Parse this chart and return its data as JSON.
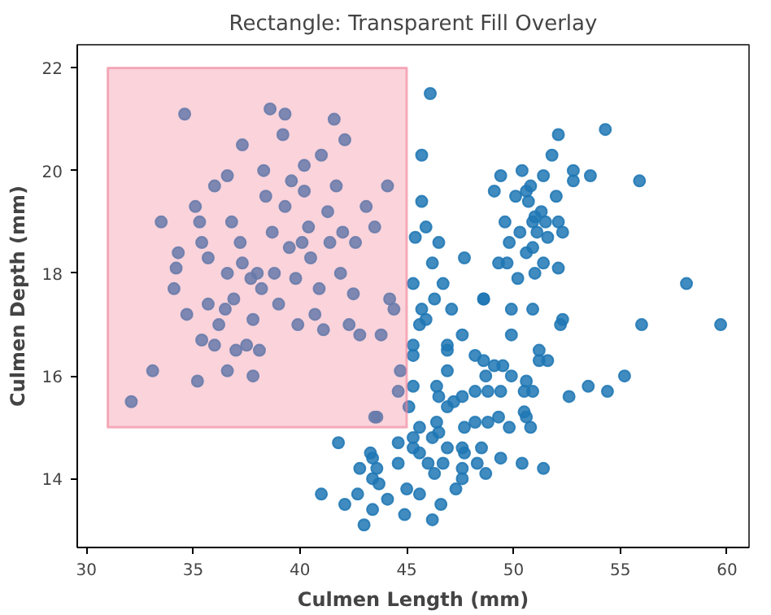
{
  "chart_data": {
    "type": "scatter",
    "title": "Rectangle: Transparent Fill Overlay",
    "xlabel": "Culmen Length (mm)",
    "ylabel": "Culmen Depth (mm)",
    "xlim": [
      29.57,
      61.03
    ],
    "ylim": [
      12.66,
      22.45
    ],
    "xticks": [
      30,
      35,
      40,
      45,
      50,
      55,
      60
    ],
    "yticks": [
      14,
      16,
      18,
      20,
      22
    ],
    "series": [
      {
        "color": "#1f77b4",
        "marker": "circle",
        "x": [
          32.1,
          33.1,
          33.5,
          34.3,
          34.2,
          34.6,
          34.1,
          34.7,
          35.1,
          35.3,
          35.4,
          35.4,
          35.7,
          35.7,
          36.0,
          36.2,
          36.5,
          36.6,
          36.6,
          36.8,
          36.9,
          37.2,
          37.3,
          37.5,
          37.8,
          37.8,
          38.0,
          38.2,
          38.3,
          38.4,
          38.6,
          38.7,
          38.8,
          39.0,
          39.2,
          39.3,
          39.5,
          39.6,
          39.8,
          39.9,
          40.1,
          40.2,
          40.4,
          40.5,
          40.7,
          40.9,
          41.0,
          41.1,
          41.3,
          41.4,
          41.6,
          41.7,
          41.9,
          42.0,
          42.1,
          42.3,
          42.5,
          42.6,
          42.8,
          43.1,
          43.5,
          44.1,
          44.2,
          44.4,
          44.7,
          43.5,
          43.8,
          37.7,
          37.3,
          35.2,
          36.6,
          38.1,
          37.0,
          36.0,
          39.3,
          40.2,
          46.1,
          45.7,
          45.7,
          45.9,
          45.4,
          46.5,
          46.2,
          47.7,
          45.3,
          46.7,
          48.6,
          49.4,
          49.1,
          50.4,
          50.1,
          49.6,
          49.8,
          50.3,
          49.3,
          49.7,
          50.2,
          52.1,
          54.3,
          51.8,
          52.8,
          53.6,
          52.8,
          55.9,
          51.4,
          50.6,
          50.8,
          50.7,
          52.0,
          51.3,
          51.0,
          50.9,
          51.5,
          52.1,
          51.1,
          52.3,
          51.6,
          50.9,
          50.6,
          51.4,
          52.1,
          51.0,
          58.1,
          50.9,
          52.3,
          52.2,
          56.0,
          59.7,
          51.2,
          51.2,
          51.6,
          50.6,
          50.5,
          50.9,
          52.6,
          53.5,
          54.4,
          55.2,
          50.5,
          50.6,
          50.8,
          50.4,
          51.4,
          46.3,
          48.6,
          45.7,
          47.1,
          49.9,
          45.9,
          45.6,
          47.6,
          49.9,
          45.3,
          46.9,
          46.9,
          45.3,
          48.2,
          48.6,
          49.1,
          49.5,
          46.9,
          48.7,
          49.9,
          45.3,
          46.4,
          48.2,
          48.8,
          49.4,
          44.6,
          46.5,
          47.6,
          45.1,
          46.9,
          47.2,
          43.6,
          45.6,
          46.4,
          47.7,
          48.2,
          48.8,
          49.3,
          49.8,
          41.8,
          45.3,
          46.2,
          46.5,
          44.6,
          45.3,
          45.6,
          46.9,
          47.6,
          47.7,
          48.5,
          49.4,
          43.3,
          43.4,
          42.8,
          43.6,
          44.6,
          46.0,
          46.7,
          46.3,
          47.6,
          48.3,
          48.7,
          43.4,
          43.7,
          47.6,
          42.7,
          41.0,
          45.0,
          45.6,
          47.3,
          42.1,
          43.4,
          44.1,
          44.9,
          46.2,
          46.6,
          43.0
        ],
        "values": [
          15.5,
          16.1,
          19.0,
          18.4,
          18.1,
          21.1,
          17.7,
          17.2,
          19.3,
          19.0,
          16.7,
          18.6,
          18.3,
          17.4,
          19.7,
          17.0,
          17.3,
          18.0,
          19.9,
          19.0,
          17.5,
          18.6,
          20.5,
          16.6,
          16.0,
          17.1,
          18.0,
          17.7,
          20.0,
          19.5,
          21.2,
          18.8,
          18.0,
          17.4,
          20.7,
          19.3,
          18.5,
          19.8,
          17.9,
          17.0,
          18.6,
          19.6,
          18.9,
          18.3,
          17.2,
          17.7,
          20.3,
          16.9,
          19.2,
          18.6,
          21.0,
          19.7,
          18.0,
          18.8,
          20.6,
          17.0,
          17.6,
          18.6,
          16.8,
          19.3,
          18.9,
          19.7,
          17.5,
          17.3,
          16.1,
          15.2,
          16.8,
          17.9,
          18.2,
          15.9,
          16.1,
          16.5,
          16.5,
          16.6,
          21.1,
          20.1,
          21.5,
          20.3,
          19.4,
          18.9,
          18.7,
          18.6,
          18.2,
          18.3,
          17.8,
          17.8,
          17.5,
          19.9,
          19.6,
          20.0,
          19.5,
          19.0,
          18.6,
          18.8,
          18.2,
          18.2,
          17.9,
          20.7,
          20.8,
          20.3,
          20.0,
          19.9,
          19.8,
          19.8,
          19.9,
          19.6,
          19.7,
          19.4,
          19.5,
          19.2,
          19.1,
          19.0,
          19.0,
          19.0,
          18.8,
          18.8,
          18.7,
          18.5,
          18.4,
          18.2,
          18.1,
          18.0,
          17.8,
          17.3,
          17.1,
          17.0,
          17.0,
          17.0,
          16.5,
          16.3,
          16.3,
          15.9,
          15.7,
          15.7,
          15.6,
          15.8,
          15.7,
          16.0,
          15.3,
          15.2,
          15.0,
          14.3,
          14.2,
          17.5,
          17.5,
          17.3,
          17.3,
          17.3,
          17.1,
          17.0,
          16.8,
          16.8,
          16.6,
          16.6,
          16.5,
          16.4,
          16.4,
          16.3,
          16.2,
          16.2,
          16.1,
          16.0,
          16.0,
          15.8,
          15.8,
          15.7,
          15.7,
          15.7,
          15.7,
          15.6,
          15.6,
          15.4,
          15.4,
          15.5,
          15.2,
          15.0,
          15.1,
          15.0,
          15.1,
          15.1,
          15.2,
          15.0,
          14.7,
          14.8,
          14.8,
          14.9,
          14.7,
          14.6,
          14.5,
          14.6,
          14.6,
          14.5,
          14.6,
          14.4,
          14.5,
          14.4,
          14.2,
          14.2,
          14.3,
          14.3,
          14.3,
          14.1,
          14.2,
          14.3,
          14.1,
          14.0,
          13.9,
          14.0,
          13.7,
          13.7,
          13.8,
          13.7,
          13.8,
          13.5,
          13.4,
          13.6,
          13.3,
          13.2,
          13.5,
          13.1
        ]
      },
      {
        "type": "area",
        "color": "#f08098",
        "x": [
          31,
          31,
          45,
          45,
          31
        ],
        "values": [
          15,
          22,
          22,
          15,
          15
        ]
      }
    ]
  }
}
